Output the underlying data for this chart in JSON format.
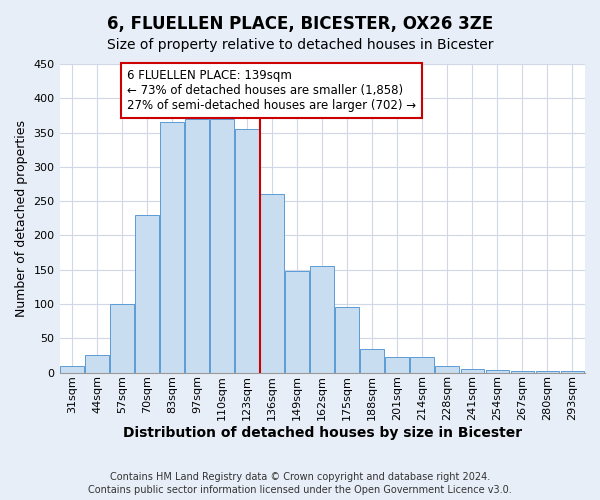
{
  "title": "6, FLUELLEN PLACE, BICESTER, OX26 3ZE",
  "subtitle": "Size of property relative to detached houses in Bicester",
  "xlabel": "Distribution of detached houses by size in Bicester",
  "ylabel": "Number of detached properties",
  "bar_labels": [
    "31sqm",
    "44sqm",
    "57sqm",
    "70sqm",
    "83sqm",
    "97sqm",
    "110sqm",
    "123sqm",
    "136sqm",
    "149sqm",
    "162sqm",
    "175sqm",
    "188sqm",
    "201sqm",
    "214sqm",
    "228sqm",
    "241sqm",
    "254sqm",
    "267sqm",
    "280sqm",
    "293sqm"
  ],
  "bar_values": [
    10,
    25,
    100,
    230,
    365,
    370,
    370,
    355,
    260,
    148,
    155,
    95,
    35,
    22,
    22,
    10,
    5,
    3,
    2,
    2,
    2
  ],
  "bar_color": "#c8ddf0",
  "bar_edge_color": "#5b9bd5",
  "vline_index": 8,
  "vline_color": "#cc0000",
  "annotation_line1": "6 FLUELLEN PLACE: 139sqm",
  "annotation_line2": "← 73% of detached houses are smaller (1,858)",
  "annotation_line3": "27% of semi-detached houses are larger (702) →",
  "annotation_box_color": "#ffffff",
  "annotation_box_edge": "#cc0000",
  "ylim": [
    0,
    450
  ],
  "yticks": [
    0,
    50,
    100,
    150,
    200,
    250,
    300,
    350,
    400,
    450
  ],
  "footer_line1": "Contains HM Land Registry data © Crown copyright and database right 2024.",
  "footer_line2": "Contains public sector information licensed under the Open Government Licence v3.0.",
  "title_fontsize": 12,
  "subtitle_fontsize": 10,
  "ylabel_fontsize": 9,
  "xlabel_fontsize": 10,
  "tick_fontsize": 8,
  "annotation_fontsize": 8.5,
  "footer_fontsize": 7,
  "figure_bg": "#e8eef8",
  "axes_bg": "#ffffff"
}
